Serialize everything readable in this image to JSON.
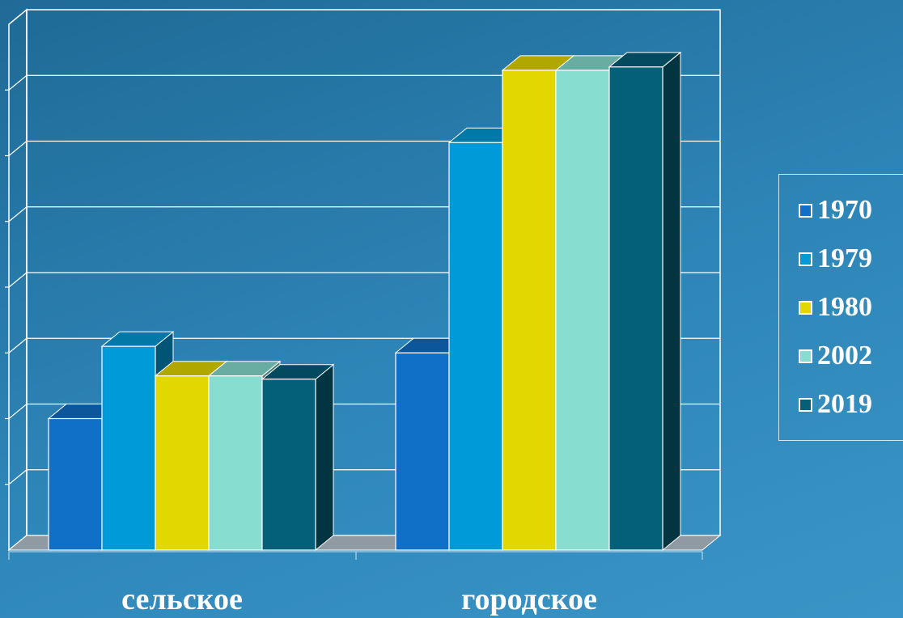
{
  "chart_data": {
    "type": "bar",
    "categories": [
      "сельское",
      "городское"
    ],
    "series": [
      {
        "name": "1970",
        "color": "#1070c8",
        "values": [
          20,
          30
        ]
      },
      {
        "name": "1979",
        "color": "#009ad8",
        "values": [
          31,
          62
        ]
      },
      {
        "name": "1980",
        "color": "#e2d800",
        "values": [
          26.5,
          73
        ]
      },
      {
        "name": "2002",
        "color": "#86ddd0",
        "values": [
          26.5,
          73
        ]
      },
      {
        "name": "2019",
        "color": "#045f78",
        "values": [
          26,
          73.5
        ]
      }
    ],
    "ylim": [
      0,
      80
    ],
    "grid": true,
    "legend_position": "right",
    "title": "",
    "xlabel": "",
    "ylabel": ""
  }
}
